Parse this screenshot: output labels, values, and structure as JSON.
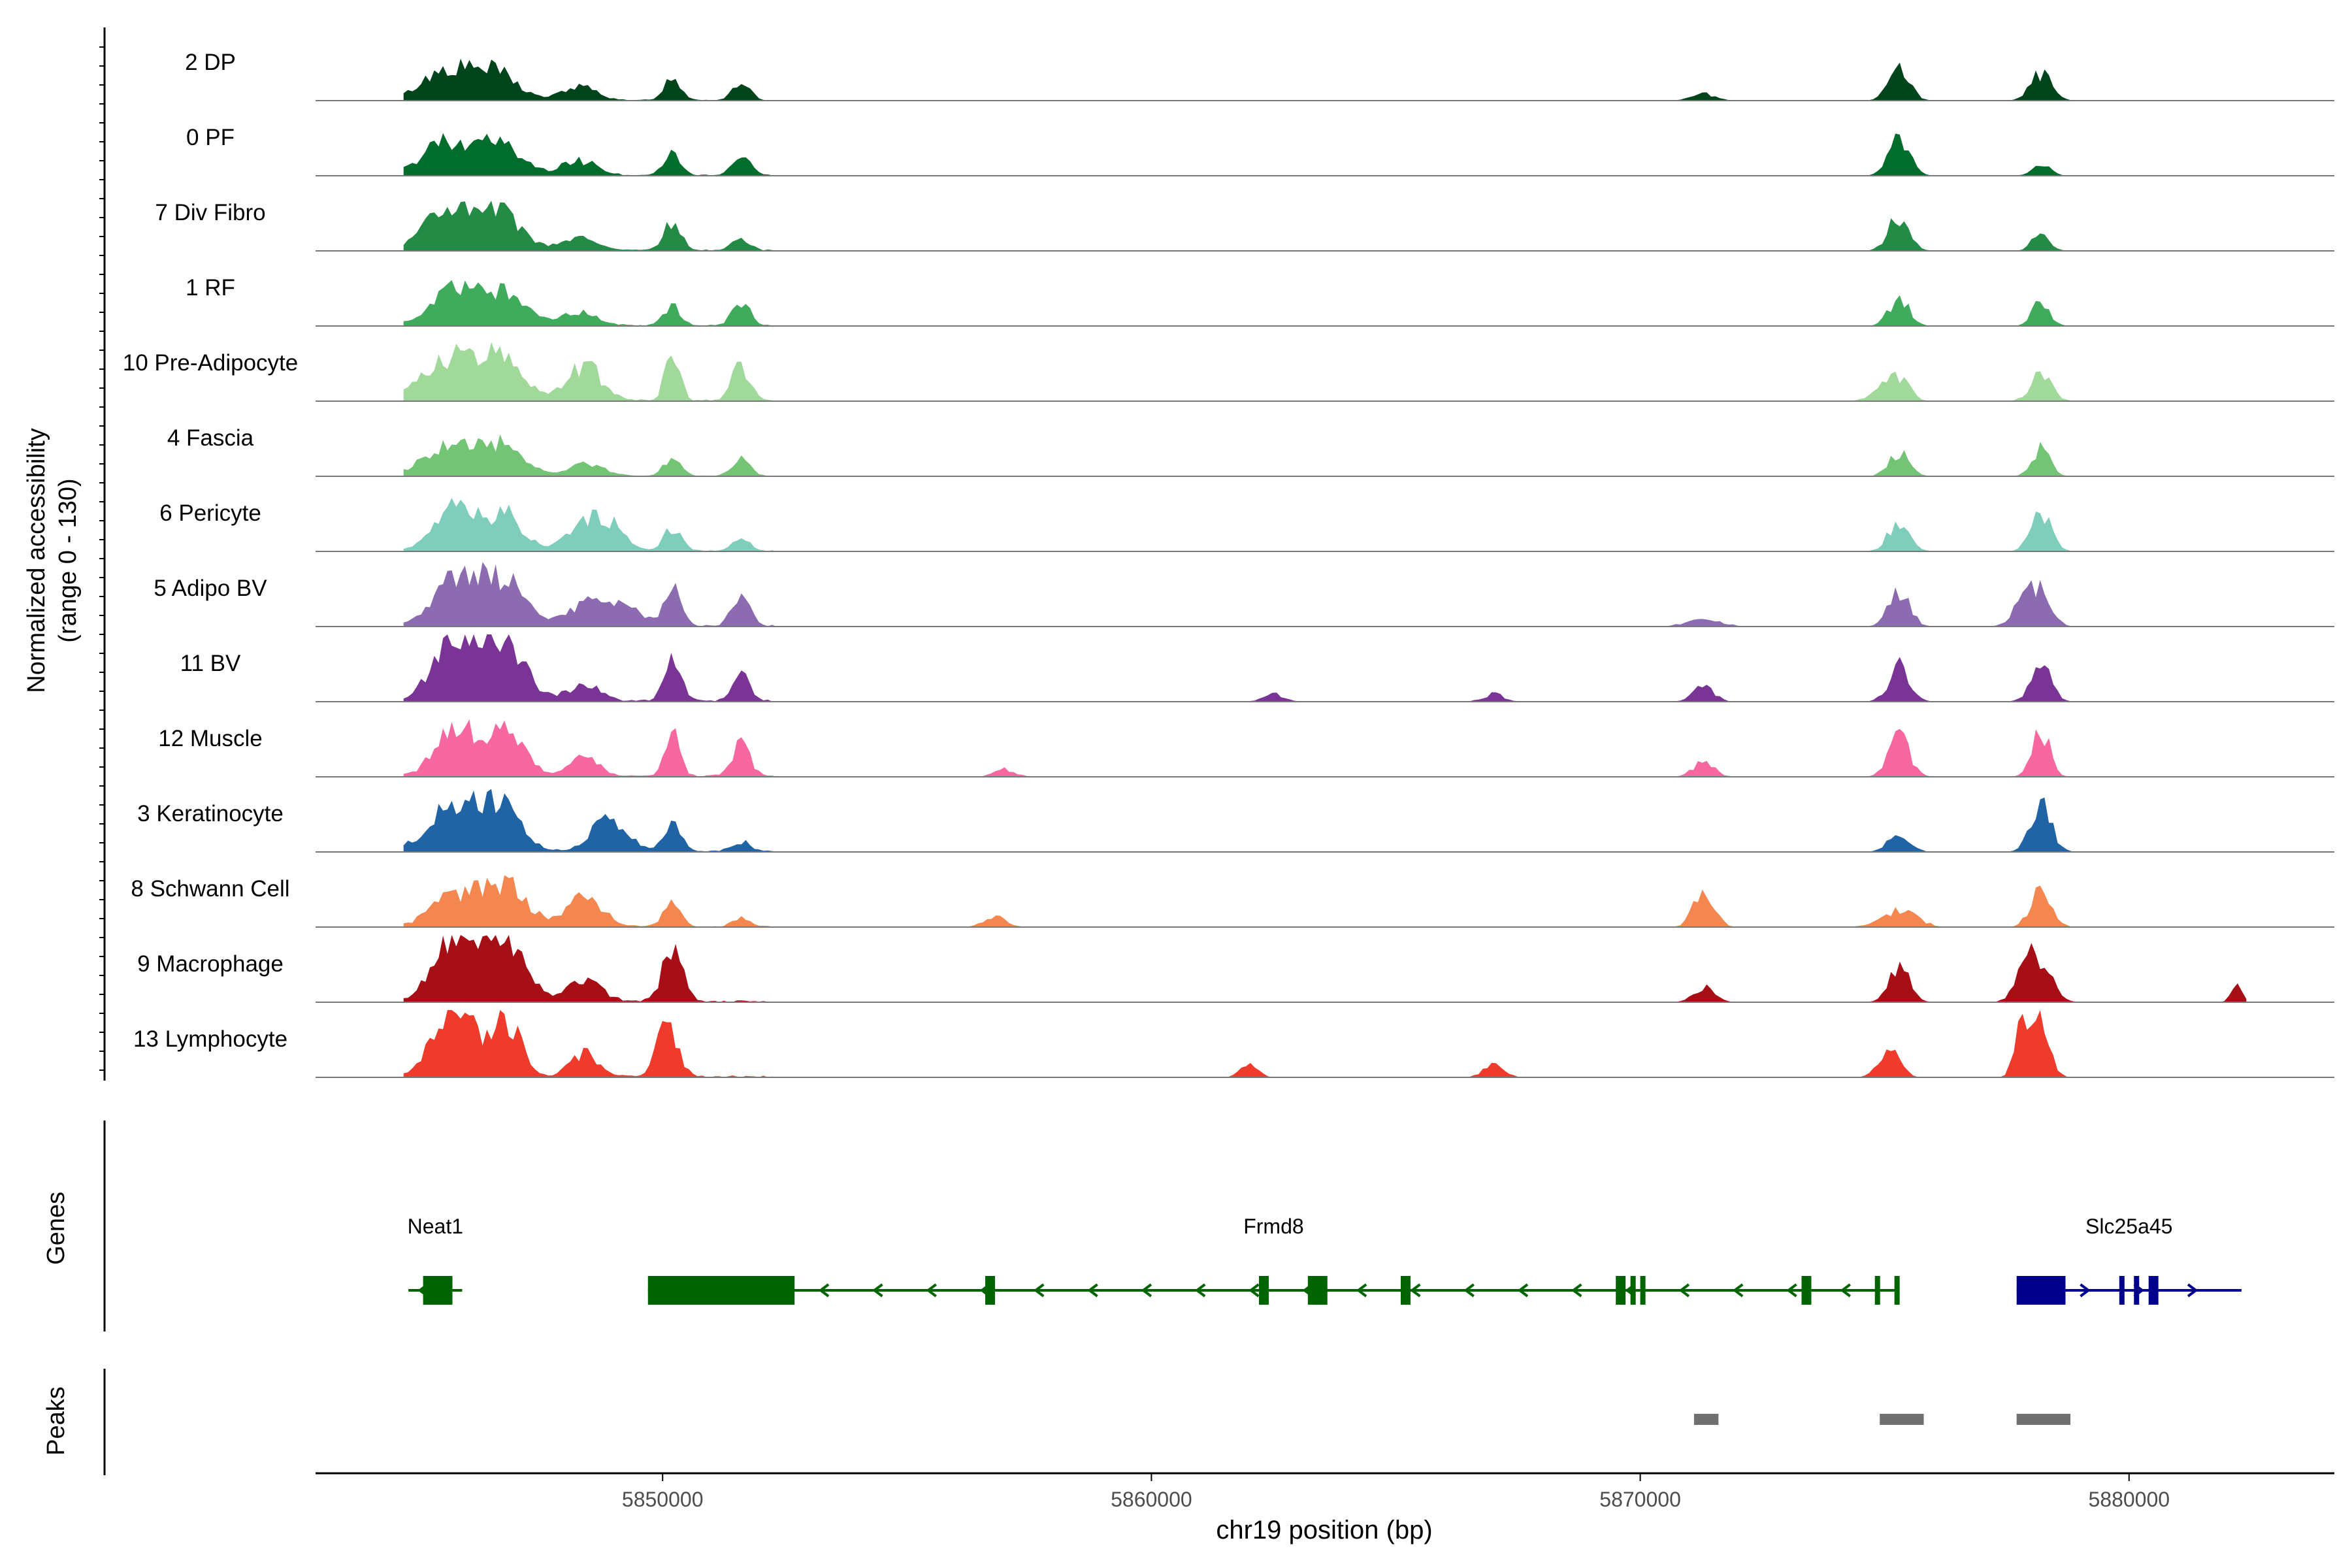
{
  "chart_data": {
    "type": "area",
    "title": "",
    "y_axis_label_line1": "Normalized accessibility",
    "y_axis_label_line2": "(range 0 - 130)",
    "y_range": [
      0,
      130
    ],
    "x_axis_label": "chr19 position (bp)",
    "x_range": [
      5842900,
      5884200
    ],
    "x_ticks": [
      {
        "value": 5850000,
        "label": "5850000"
      },
      {
        "value": 5860000,
        "label": "5860000"
      },
      {
        "value": 5870000,
        "label": "5870000"
      },
      {
        "value": 5880000,
        "label": "5880000"
      }
    ],
    "tracks": [
      {
        "name": "2 DP",
        "color": "#00441b",
        "scale": 0.55,
        "peaks": [
          [
            5845600,
            14,
            700
          ],
          [
            5846600,
            12,
            600
          ],
          [
            5848300,
            6,
            500
          ],
          [
            5850200,
            10,
            250
          ],
          [
            5851600,
            8,
            250
          ],
          [
            5871300,
            3,
            350
          ],
          [
            5875300,
            14,
            300
          ],
          [
            5878200,
            12,
            300
          ]
        ]
      },
      {
        "name": "0 PF",
        "color": "#006d2c",
        "scale": 0.62,
        "peaks": [
          [
            5845600,
            14,
            700
          ],
          [
            5846700,
            12,
            600
          ],
          [
            5848300,
            6,
            500
          ],
          [
            5850200,
            8,
            250
          ],
          [
            5851600,
            9,
            250
          ],
          [
            5875300,
            14,
            300
          ],
          [
            5878200,
            5,
            250
          ]
        ]
      },
      {
        "name": "7 Div Fibro",
        "color": "#238b45",
        "scale": 0.72,
        "peaks": [
          [
            5845600,
            14,
            700
          ],
          [
            5846700,
            12,
            600
          ],
          [
            5848300,
            4,
            500
          ],
          [
            5850200,
            9,
            250
          ],
          [
            5851600,
            4,
            250
          ],
          [
            5875300,
            12,
            300
          ],
          [
            5878200,
            6,
            250
          ]
        ]
      },
      {
        "name": "1 RF",
        "color": "#41ab5d",
        "scale": 0.65,
        "peaks": [
          [
            5845800,
            14,
            700
          ],
          [
            5846800,
            11,
            600
          ],
          [
            5848300,
            5,
            500
          ],
          [
            5850200,
            7,
            250
          ],
          [
            5851600,
            9,
            250
          ],
          [
            5875300,
            10,
            300
          ],
          [
            5878200,
            9,
            250
          ]
        ]
      },
      {
        "name": "10 Pre-Adipocyte",
        "color": "#a1d99b",
        "scale": 0.95,
        "peaks": [
          [
            5845600,
            11,
            700
          ],
          [
            5846700,
            12,
            600
          ],
          [
            5848400,
            9,
            500
          ],
          [
            5850200,
            14,
            200
          ],
          [
            5851600,
            9,
            250
          ],
          [
            5874900,
            3,
            300
          ],
          [
            5875300,
            6,
            300
          ],
          [
            5878200,
            7,
            300
          ]
        ]
      },
      {
        "name": "4 Fascia",
        "color": "#74c476",
        "scale": 0.6,
        "peaks": [
          [
            5845600,
            12,
            700
          ],
          [
            5846700,
            13,
            600
          ],
          [
            5848400,
            5,
            500
          ],
          [
            5850200,
            7,
            250
          ],
          [
            5851600,
            7,
            250
          ],
          [
            5875300,
            10,
            300
          ],
          [
            5878200,
            12,
            250
          ]
        ]
      },
      {
        "name": "6 Pericyte",
        "color": "#7fcdbb",
        "scale": 0.78,
        "peaks": [
          [
            5845800,
            14,
            600
          ],
          [
            5846800,
            11,
            500
          ],
          [
            5848400,
            9,
            500
          ],
          [
            5849000,
            7,
            400
          ],
          [
            5850200,
            7,
            250
          ],
          [
            5851600,
            4,
            250
          ],
          [
            5875300,
            10,
            300
          ],
          [
            5878200,
            12,
            300
          ]
        ]
      },
      {
        "name": "5 Adipo BV",
        "color": "#8c6bb1",
        "scale": 0.88,
        "peaks": [
          [
            5845800,
            13,
            700
          ],
          [
            5846800,
            12,
            600
          ],
          [
            5848400,
            6,
            500
          ],
          [
            5849200,
            5,
            500
          ],
          [
            5850200,
            10,
            250
          ],
          [
            5851600,
            9,
            250
          ],
          [
            5871300,
            2,
            500
          ],
          [
            5875300,
            10,
            300
          ],
          [
            5877800,
            6,
            300
          ],
          [
            5878200,
            10,
            300
          ]
        ]
      },
      {
        "name": "11 BV",
        "color": "#7a3495",
        "scale": 0.95,
        "peaks": [
          [
            5845600,
            14,
            500
          ],
          [
            5846200,
            9,
            500
          ],
          [
            5846800,
            13,
            600
          ],
          [
            5848400,
            4,
            500
          ],
          [
            5850200,
            11,
            250
          ],
          [
            5851600,
            7,
            250
          ],
          [
            5862500,
            2,
            300
          ],
          [
            5867000,
            2,
            300
          ],
          [
            5871300,
            4,
            300
          ],
          [
            5875300,
            9,
            300
          ],
          [
            5878200,
            9,
            300
          ]
        ]
      },
      {
        "name": "12 Muscle",
        "color": "#f768a1",
        "scale": 0.95,
        "peaks": [
          [
            5845700,
            14,
            500
          ],
          [
            5846700,
            12,
            600
          ],
          [
            5848400,
            5,
            400
          ],
          [
            5850200,
            12,
            200
          ],
          [
            5851600,
            9,
            250
          ],
          [
            5857000,
            2,
            300
          ],
          [
            5871300,
            4,
            300
          ],
          [
            5875300,
            10,
            300
          ],
          [
            5878200,
            12,
            250
          ]
        ]
      },
      {
        "name": "3 Keratinocyte",
        "color": "#2164a6",
        "scale": 0.8,
        "peaks": [
          [
            5845700,
            14,
            700
          ],
          [
            5846700,
            13,
            600
          ],
          [
            5848900,
            10,
            500
          ],
          [
            5850200,
            8,
            250
          ],
          [
            5851600,
            3,
            250
          ],
          [
            5875300,
            6,
            300
          ],
          [
            5878200,
            14,
            300
          ]
        ]
      },
      {
        "name": "8 Schwann Cell",
        "color": "#f4874f",
        "scale": 0.7,
        "peaks": [
          [
            5845800,
            11,
            700
          ],
          [
            5846800,
            14,
            600
          ],
          [
            5848400,
            11,
            500
          ],
          [
            5850200,
            8,
            250
          ],
          [
            5851600,
            3,
            250
          ],
          [
            5856800,
            4,
            300
          ],
          [
            5871300,
            12,
            300
          ],
          [
            5875300,
            6,
            500
          ],
          [
            5878200,
            13,
            300
          ]
        ]
      },
      {
        "name": "9 Macrophage",
        "color": "#a50f15",
        "scale": 0.95,
        "peaks": [
          [
            5845600,
            14,
            500
          ],
          [
            5846200,
            10,
            500
          ],
          [
            5846800,
            13,
            600
          ],
          [
            5848400,
            5,
            500
          ],
          [
            5850200,
            13,
            300
          ],
          [
            5871300,
            4,
            300
          ],
          [
            5875300,
            9,
            300
          ],
          [
            5877900,
            11,
            300
          ],
          [
            5878300,
            8,
            300
          ],
          [
            5882200,
            4,
            150
          ]
        ]
      },
      {
        "name": "13 Lymphocyte",
        "color": "#ef3b2c",
        "scale": 0.95,
        "peaks": [
          [
            5845600,
            15,
            500
          ],
          [
            5846000,
            10,
            400
          ],
          [
            5846800,
            15,
            400
          ],
          [
            5848400,
            6,
            400
          ],
          [
            5850100,
            13,
            300
          ],
          [
            5862000,
            3,
            250
          ],
          [
            5867000,
            3,
            300
          ],
          [
            5875100,
            7,
            300
          ],
          [
            5877800,
            14,
            200
          ],
          [
            5878200,
            14,
            250
          ]
        ]
      }
    ],
    "genes_label": "Genes",
    "genes": [
      {
        "name": "Neat1",
        "color": "#006400",
        "start": 5844800,
        "end": 5845900,
        "strand": "both",
        "exons": [
          [
            5845100,
            5845700
          ]
        ]
      },
      {
        "name": "Frmd8",
        "color": "#006400",
        "start": 5849700,
        "end": 5875300,
        "strand": "-",
        "exons": [
          [
            5849700,
            5852700
          ],
          [
            5856600,
            5856800
          ],
          [
            5862200,
            5862400
          ],
          [
            5863200,
            5863600
          ],
          [
            5865100,
            5865300
          ],
          [
            5869500,
            5869700
          ],
          [
            5869800,
            5869900
          ],
          [
            5870000,
            5870100
          ],
          [
            5873300,
            5873500
          ],
          [
            5874800,
            5874900
          ],
          [
            5875200,
            5875300
          ]
        ]
      },
      {
        "name": "Slc25a45",
        "color": "#00008b",
        "start": 5877700,
        "end": 5882300,
        "strand": "+",
        "exons": [
          [
            5877700,
            5878700
          ],
          [
            5879800,
            5879900
          ],
          [
            5880100,
            5880200
          ],
          [
            5880400,
            5880600
          ]
        ]
      }
    ],
    "peaks_label": "Peaks",
    "peak_regions": [
      [
        5871100,
        5871600
      ],
      [
        5874900,
        5875800
      ],
      [
        5877700,
        5878800
      ]
    ],
    "peak_color": "#707070"
  }
}
